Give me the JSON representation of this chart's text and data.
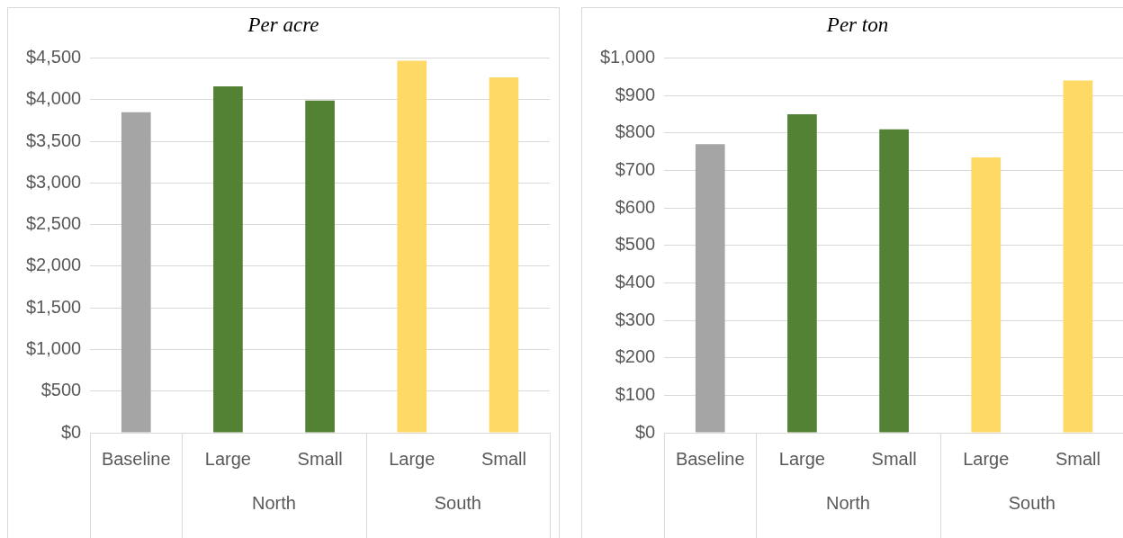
{
  "chart_data": [
    {
      "type": "bar",
      "title": "Per acre",
      "categories": [
        "Baseline",
        "Large",
        "Small",
        "Large",
        "Small"
      ],
      "values": [
        3850,
        4160,
        3990,
        4470,
        4270
      ],
      "colors": [
        "#a5a5a5",
        "#548235",
        "#548235",
        "#ffd966",
        "#ffd966"
      ],
      "ylim": [
        0,
        4500
      ],
      "yticks": [
        {
          "value": 0,
          "label": "$0"
        },
        {
          "value": 500,
          "label": "$500"
        },
        {
          "value": 1000,
          "label": "$1,000"
        },
        {
          "value": 1500,
          "label": "$1,500"
        },
        {
          "value": 2000,
          "label": "$2,000"
        },
        {
          "value": 2500,
          "label": "$2,500"
        },
        {
          "value": 3000,
          "label": "$3,000"
        },
        {
          "value": 3500,
          "label": "$3,500"
        },
        {
          "value": 4000,
          "label": "$4,000"
        },
        {
          "value": 4500,
          "label": "$4,500"
        }
      ],
      "grid": "y",
      "legend": false,
      "annotations": [
        "North",
        "South"
      ]
    },
    {
      "type": "bar",
      "title": "Per ton",
      "categories": [
        "Baseline",
        "Large",
        "Small",
        "Large",
        "Small"
      ],
      "values": [
        770,
        850,
        810,
        735,
        940
      ],
      "colors": [
        "#a5a5a5",
        "#548235",
        "#548235",
        "#ffd966",
        "#ffd966"
      ],
      "ylim": [
        0,
        1000
      ],
      "yticks": [
        {
          "value": 0,
          "label": "$0"
        },
        {
          "value": 100,
          "label": "$100"
        },
        {
          "value": 200,
          "label": "$200"
        },
        {
          "value": 300,
          "label": "$300"
        },
        {
          "value": 400,
          "label": "$400"
        },
        {
          "value": 500,
          "label": "$500"
        },
        {
          "value": 600,
          "label": "$600"
        },
        {
          "value": 700,
          "label": "$700"
        },
        {
          "value": 800,
          "label": "$800"
        },
        {
          "value": 900,
          "label": "$900"
        },
        {
          "value": 1000,
          "label": "$1,000"
        }
      ],
      "grid": "y",
      "legend": false,
      "annotations": [
        "North",
        "South"
      ]
    }
  ]
}
